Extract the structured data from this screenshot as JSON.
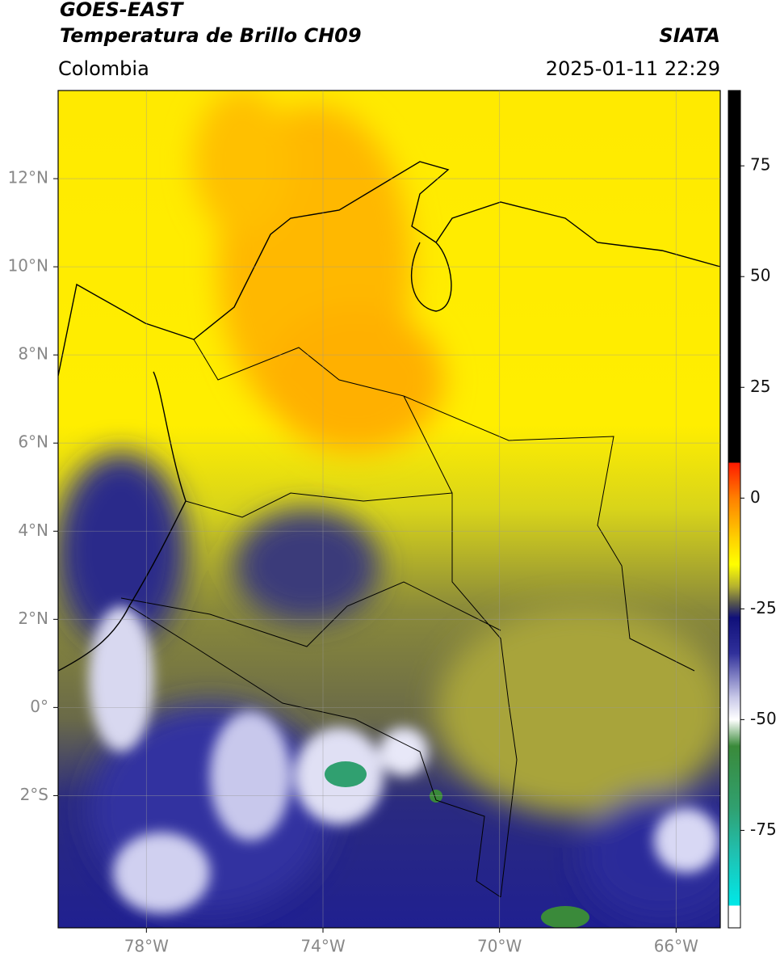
{
  "header": {
    "title": "GOES-EAST",
    "subtitle": "Temperatura de Brillo CH09",
    "source": "SIATA",
    "region": "Colombia",
    "timestamp": "2025-01-11 22:29"
  },
  "map": {
    "xlim": [
      -80,
      -65
    ],
    "ylim": [
      -5,
      14
    ],
    "grid": true,
    "xticks": [
      {
        "value": -78,
        "label": "78°W"
      },
      {
        "value": -74,
        "label": "74°W"
      },
      {
        "value": -70,
        "label": "70°W"
      },
      {
        "value": -66,
        "label": "66°W"
      }
    ],
    "yticks": [
      {
        "value": 12,
        "label": "12°N"
      },
      {
        "value": 10,
        "label": "10°N"
      },
      {
        "value": 8,
        "label": "8°N"
      },
      {
        "value": 6,
        "label": "6°N"
      },
      {
        "value": 4,
        "label": "4°N"
      },
      {
        "value": 2,
        "label": "2°N"
      },
      {
        "value": 0,
        "label": "0°"
      },
      {
        "value": -2,
        "label": "2°S"
      }
    ]
  },
  "colorbar": {
    "clim": [
      -97,
      92
    ],
    "ticks": [
      75,
      50,
      25,
      0,
      -25,
      -50,
      -75
    ],
    "stops": [
      {
        "value": 92,
        "color": "#000000"
      },
      {
        "value": 8,
        "color": "#000000"
      },
      {
        "value": 8,
        "color": "#ff1a00"
      },
      {
        "value": 0,
        "color": "#ff8000"
      },
      {
        "value": -10,
        "color": "#ffd800"
      },
      {
        "value": -15,
        "color": "#ffff00"
      },
      {
        "value": -20,
        "color": "#b4b030"
      },
      {
        "value": -24,
        "color": "#505050"
      },
      {
        "value": -27,
        "color": "#10107a"
      },
      {
        "value": -35,
        "color": "#30309a"
      },
      {
        "value": -45,
        "color": "#c8c8e8"
      },
      {
        "value": -50,
        "color": "#ffffff"
      },
      {
        "value": -56,
        "color": "#3a8a3a"
      },
      {
        "value": -70,
        "color": "#30a070"
      },
      {
        "value": -80,
        "color": "#20c0b0"
      },
      {
        "value": -92,
        "color": "#00e8e8"
      },
      {
        "value": -92,
        "color": "#ffffff"
      },
      {
        "value": -97,
        "color": "#ffffff"
      }
    ]
  }
}
